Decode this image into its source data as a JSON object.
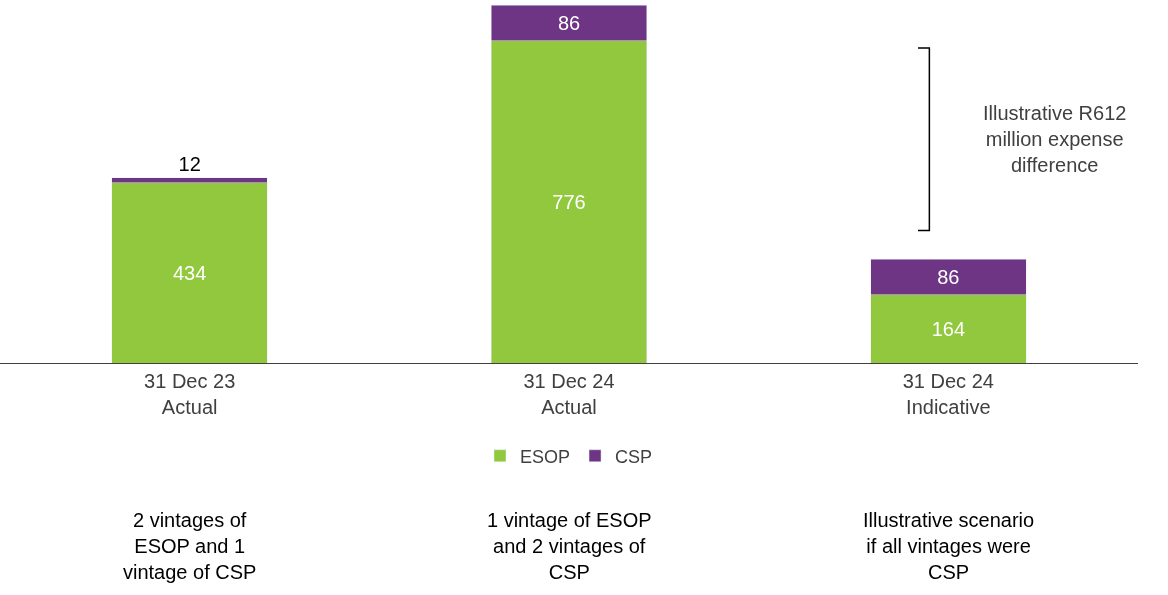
{
  "chart_data": {
    "type": "bar",
    "stacked": true,
    "data_labels": true,
    "legend": "bottom",
    "categories": [
      "31 Dec 23\nActual",
      "31 Dec 24\nActual",
      "31 Dec 24\nIndicative"
    ],
    "series": [
      {
        "name": "ESOP",
        "color": "#92c83e",
        "values": [
          434,
          776,
          164
        ]
      },
      {
        "name": "CSP",
        "color": "#6d3584",
        "values": [
          12,
          86,
          86
        ]
      }
    ],
    "annotations": [
      "Illustrative R612\nmillion expense\ndifference",
      "2 vintages of\nESOP and 1\nvintage of CSP",
      "1 vintage of ESOP\nand 2 vintages of\nCSP",
      "Illustrative scenario\nif all vintages were\nCSP"
    ]
  }
}
